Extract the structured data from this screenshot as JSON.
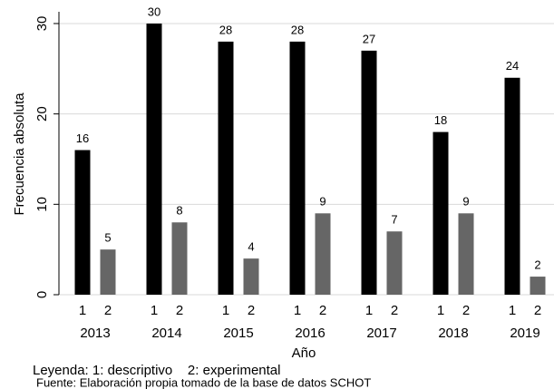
{
  "chart_data": {
    "type": "bar",
    "y_label": "Frecuencia absoluta",
    "x_label": "Año",
    "categories": [
      "2013",
      "2014",
      "2015",
      "2016",
      "2017",
      "2018",
      "2019"
    ],
    "series": [
      {
        "name": "1",
        "color": "#000000",
        "values": [
          16,
          30,
          28,
          28,
          27,
          18,
          24
        ]
      },
      {
        "name": "2",
        "color": "#666666",
        "values": [
          5,
          8,
          4,
          9,
          7,
          9,
          2
        ]
      }
    ],
    "ylim": [
      0,
      31.3
    ],
    "yticks": [
      0,
      10,
      20,
      30
    ],
    "grid": true,
    "legend_note": "Leyenda: 1: descriptivo    2: experimental",
    "source": "Fuente: Elaboración propia tomado de la base de datos SCHOT"
  }
}
